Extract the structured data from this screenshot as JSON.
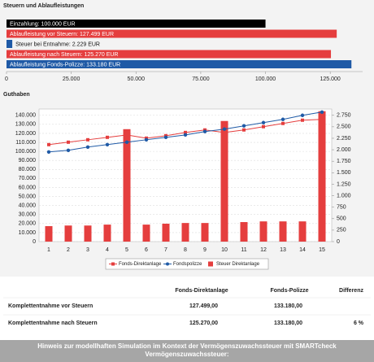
{
  "chart_data": [
    {
      "type": "hbar",
      "title": "Steuern und Ablaufleistungen",
      "categories": [
        "Einzahlung: 100.000 EUR",
        "Ablaufleistung vor Steuern: 127.499 EUR",
        "Steuer bei Entnahme: 2.229 EUR",
        "Ablaufleistung nach Steuern: 125.270 EUR",
        "Ablaufleistung Fonds-Polizze: 133.180 EUR"
      ],
      "values": [
        100000,
        127499,
        2229,
        125270,
        133180
      ],
      "colors": [
        "#000000",
        "#e53e3e",
        "#1f5aa6",
        "#e53e3e",
        "#1f5aa6"
      ],
      "xlim": [
        0,
        137500
      ],
      "xticks": [
        0,
        {
          "value": 25000,
          "label": "25.000"
        },
        {
          "value": 50000,
          "label": "50.000"
        },
        {
          "value": 75000,
          "label": "75.000"
        },
        {
          "value": 100000,
          "label": "100.000"
        },
        {
          "value": 125000,
          "label": "125.000"
        }
      ]
    },
    {
      "type": "combo",
      "title": "Guthaben",
      "categories": [
        "1",
        "2",
        "3",
        "4",
        "5",
        "6",
        "7",
        "8",
        "9",
        "10",
        "11",
        "12",
        "13",
        "14",
        "15"
      ],
      "series": [
        {
          "name": "Fonds-Direktanlage",
          "type": "line",
          "marker": "square",
          "color": "#e53e3e",
          "values": [
            107500,
            110200,
            112900,
            115600,
            118300,
            114700,
            117400,
            121000,
            123800,
            121000,
            123800,
            127400,
            131000,
            134600,
            135500
          ]
        },
        {
          "name": "Fondspolizze",
          "type": "line",
          "marker": "circle",
          "color": "#1f5aa6",
          "values": [
            99400,
            101200,
            104800,
            107500,
            110200,
            112900,
            115600,
            118300,
            122000,
            124700,
            128300,
            131900,
            135500,
            140000,
            143600
          ]
        },
        {
          "name": "Steuer Direktanlage",
          "type": "bar",
          "axis": "y2",
          "color": "#e53e3e",
          "values": [
            337,
            350,
            350,
            370,
            2448,
            370,
            390,
            405,
            405,
            2626,
            425,
            440,
            440,
            440,
            2839
          ]
        }
      ],
      "ylim": [
        0,
        147000
      ],
      "yticks": [
        0,
        {
          "value": 10000,
          "label": "10.000"
        },
        {
          "value": 20000,
          "label": "20.000"
        },
        {
          "value": 30000,
          "label": "30.000"
        },
        {
          "value": 40000,
          "label": "40.000"
        },
        {
          "value": 50000,
          "label": "50.000"
        },
        {
          "value": 60000,
          "label": "60.000"
        },
        {
          "value": 70000,
          "label": "70.000"
        },
        {
          "value": 80000,
          "label": "80.000"
        },
        {
          "value": 90000,
          "label": "90.000"
        },
        {
          "value": 100000,
          "label": "100.000"
        },
        {
          "value": 110000,
          "label": "110.000"
        },
        {
          "value": 120000,
          "label": "120.000"
        },
        {
          "value": 130000,
          "label": "130.000"
        },
        {
          "value": 140000,
          "label": "140.000"
        }
      ],
      "y2lim": [
        0,
        2887
      ],
      "y2ticks": [
        0,
        250,
        500,
        750,
        {
          "value": 1000,
          "label": "1.000"
        },
        {
          "value": 1250,
          "label": "1.250"
        },
        {
          "value": 1500,
          "label": "1.500"
        },
        {
          "value": 1750,
          "label": "1.750"
        },
        {
          "value": 2000,
          "label": "2.000"
        },
        {
          "value": 2250,
          "label": "2.250"
        },
        {
          "value": 2500,
          "label": "2.500"
        },
        {
          "value": 2750,
          "label": "2.750"
        }
      ],
      "grid": true,
      "legend": "bottom"
    }
  ],
  "table": {
    "columns": [
      "Fonds-Direktanlage",
      "Fonds-Polizze",
      "Differenz"
    ],
    "rows": [
      {
        "label": "Komplettentnahme vor Steuern",
        "cells": [
          "127.499,00",
          "133.180,00"
        ]
      },
      {
        "label": "Komplettentnahme nach Steuern",
        "cells": [
          "125.270,00",
          "133.180,00",
          "6 %"
        ]
      }
    ]
  },
  "footer": "Hinweis zur modellhaften Simulation im Kontext der Vermögenszuwachssteuer mit SMARTcheck Vermögenszuwachssteuer:"
}
